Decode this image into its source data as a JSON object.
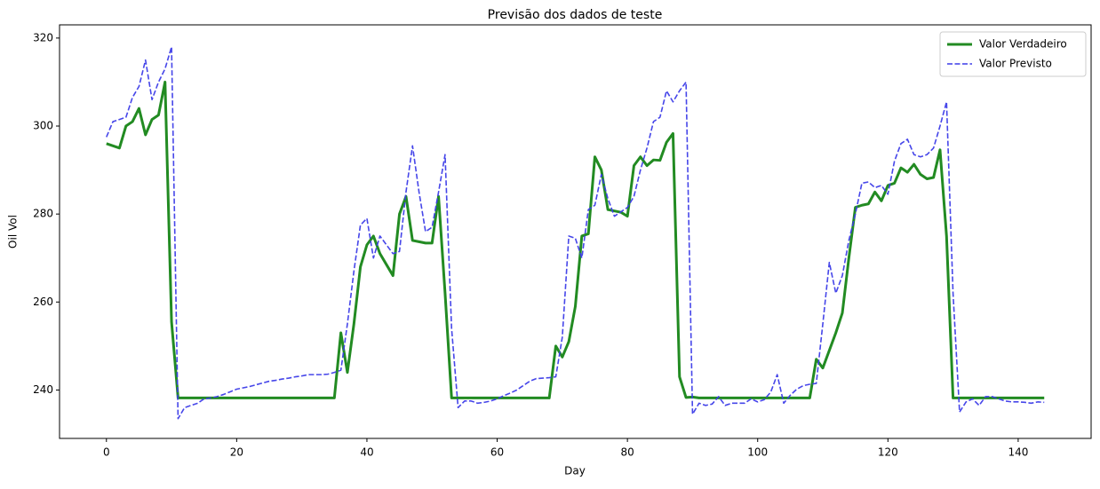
{
  "chart_data": {
    "type": "line",
    "title": "Previsão dos dados de teste",
    "xlabel": "Day",
    "ylabel": "Oil Vol",
    "x": [
      0,
      1,
      2,
      3,
      4,
      5,
      6,
      7,
      8,
      9,
      10,
      11,
      12,
      13,
      14,
      15,
      16,
      17,
      18,
      19,
      20,
      21,
      22,
      23,
      24,
      25,
      26,
      27,
      28,
      29,
      30,
      31,
      32,
      33,
      34,
      35,
      36,
      37,
      38,
      39,
      40,
      41,
      42,
      43,
      44,
      45,
      46,
      47,
      48,
      49,
      50,
      51,
      52,
      53,
      54,
      55,
      56,
      57,
      58,
      59,
      60,
      61,
      62,
      63,
      64,
      65,
      66,
      67,
      68,
      69,
      70,
      71,
      72,
      73,
      74,
      75,
      76,
      77,
      78,
      79,
      80,
      81,
      82,
      83,
      84,
      85,
      86,
      87,
      88,
      89,
      90,
      91,
      92,
      93,
      94,
      95,
      96,
      97,
      98,
      99,
      100,
      101,
      102,
      103,
      104,
      105,
      106,
      107,
      108,
      109,
      110,
      111,
      112,
      113,
      114,
      115,
      116,
      117,
      118,
      119,
      120,
      121,
      122,
      123,
      124,
      125,
      126,
      127,
      128,
      129,
      130,
      131,
      132,
      133,
      134,
      135,
      136,
      137,
      138,
      139,
      140,
      141,
      142,
      143,
      144
    ],
    "series": [
      {
        "name": "Valor Verdadeiro",
        "color": "#228b22",
        "dash": false,
        "values": [
          296,
          295.5,
          295,
          300,
          301,
          304,
          298,
          301.5,
          302.5,
          310,
          255.5,
          238.2,
          238.2,
          238.2,
          238.2,
          238.2,
          238.2,
          238.2,
          238.2,
          238.2,
          238.2,
          238.2,
          238.2,
          238.2,
          238.2,
          238.2,
          238.2,
          238.2,
          238.2,
          238.2,
          238.2,
          238.2,
          238.2,
          238.2,
          238.2,
          238.2,
          253,
          244,
          255,
          268,
          273,
          275,
          271,
          268.5,
          266,
          280,
          284,
          274,
          273.7,
          273.4,
          273.4,
          284,
          262,
          238.2,
          238.2,
          238.2,
          238.2,
          238.2,
          238.2,
          238.2,
          238.2,
          238.2,
          238.2,
          238.2,
          238.2,
          238.2,
          238.2,
          238.2,
          238.2,
          250,
          247.5,
          251,
          259,
          275,
          275.5,
          293,
          290,
          281,
          280.7,
          280.4,
          279.5,
          291,
          293,
          291,
          292.3,
          292.2,
          296.3,
          298.3,
          243,
          238.3,
          238.4,
          238.2,
          238.2,
          238.2,
          238.2,
          238.2,
          238.2,
          238.2,
          238.2,
          238.2,
          238.2,
          238.2,
          238.2,
          238.2,
          238.2,
          238.2,
          238.2,
          238.2,
          238.2,
          247,
          245,
          249,
          253,
          257.5,
          270,
          281.5,
          282,
          282.3,
          285,
          283,
          286.5,
          287,
          290.5,
          289.5,
          291.3,
          289,
          288,
          288.3,
          294.6,
          275,
          238.2,
          238.2,
          238.2,
          238.2,
          238.2,
          238.2,
          238.2,
          238.2,
          238.2,
          238.2,
          238.2,
          238.2,
          238.2,
          238.2,
          238.2
        ]
      },
      {
        "name": "Valor Previsto",
        "color": "#3c3ce8",
        "dash": true,
        "values": [
          297.5,
          301,
          301.5,
          302,
          306.5,
          309,
          315,
          306,
          310,
          313,
          318,
          233.5,
          236,
          236.5,
          237,
          238,
          238.2,
          238.5,
          239,
          239.6,
          240.2,
          240.5,
          240.8,
          241.2,
          241.6,
          242,
          242.2,
          242.5,
          242.7,
          243,
          243.2,
          243.5,
          243.5,
          243.5,
          243.6,
          244,
          244.5,
          255,
          267,
          277.5,
          279,
          270,
          275,
          273,
          271,
          271.5,
          285,
          295.5,
          285,
          276,
          277,
          285,
          293.5,
          254,
          236,
          237.5,
          237.5,
          237,
          237.2,
          237.5,
          238,
          238.7,
          239.3,
          240,
          241,
          242,
          242.6,
          242.7,
          242.8,
          243,
          252,
          275,
          274.5,
          270,
          281,
          282,
          289,
          283.5,
          279.5,
          280.5,
          281.5,
          284,
          290,
          295,
          301,
          302,
          308,
          305.5,
          308,
          310,
          234.5,
          237,
          236.5,
          236.8,
          238.5,
          236.5,
          237,
          237,
          237,
          238,
          237.3,
          237.8,
          239.5,
          243.5,
          237,
          238.8,
          240.2,
          241,
          241.3,
          241.5,
          255,
          269,
          262,
          266,
          274,
          280,
          287,
          287.3,
          286,
          286.5,
          284.5,
          292,
          296,
          297,
          293.5,
          293,
          293.5,
          295,
          300,
          305.5,
          262,
          235,
          237.3,
          238,
          236.5,
          238.5,
          238.5,
          238,
          237.5,
          237.3,
          237.3,
          237.2,
          237,
          237.3,
          237.2
        ]
      }
    ],
    "xlim": [
      -7.2,
      151.2
    ],
    "ylim": [
      229,
      323
    ],
    "xticks": [
      0,
      20,
      40,
      60,
      80,
      100,
      120,
      140
    ],
    "yticks": [
      240,
      260,
      280,
      300,
      320
    ],
    "legend": "upper right",
    "grid": false
  }
}
